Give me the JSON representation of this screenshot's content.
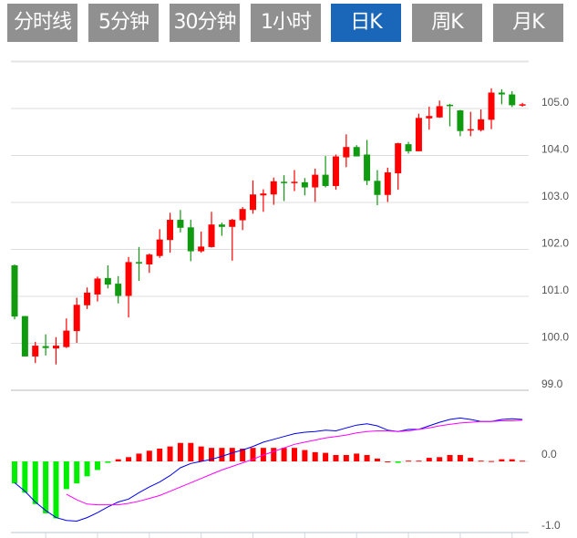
{
  "tabs": [
    {
      "label": "分时线",
      "active": false
    },
    {
      "label": "5分钟",
      "active": false
    },
    {
      "label": "30分钟",
      "active": false
    },
    {
      "label": "1小时",
      "active": false
    },
    {
      "label": "日K",
      "active": true
    },
    {
      "label": "周K",
      "active": false
    },
    {
      "label": "月K",
      "active": false
    }
  ],
  "colors": {
    "up": "#ff0000",
    "down": "#109a10",
    "hist_up": "#ff0000",
    "hist_down": "#00ee00",
    "dif": "#0000ee",
    "dea": "#ff00ff",
    "active_tab": "#1a66b8",
    "tab": "#909090"
  },
  "chart_data": [
    {
      "type": "candlestick",
      "ylim": [
        99.0,
        106.0
      ],
      "y_ticks": [
        "105.0",
        "104.0",
        "103.0",
        "102.0",
        "101.0",
        "100.0",
        "99.0"
      ],
      "y_tick_values": [
        105,
        104,
        103,
        102,
        101,
        100,
        99
      ],
      "grid": true,
      "ohlc": [
        [
          101.66,
          101.68,
          100.51,
          100.57
        ],
        [
          100.58,
          100.58,
          99.72,
          99.72
        ],
        [
          99.72,
          100.03,
          99.58,
          99.95
        ],
        [
          99.94,
          100.19,
          99.74,
          99.9
        ],
        [
          99.89,
          100.13,
          99.55,
          99.95
        ],
        [
          99.92,
          100.53,
          99.9,
          100.27
        ],
        [
          100.26,
          100.97,
          100.01,
          100.82
        ],
        [
          100.81,
          101.19,
          100.73,
          101.08
        ],
        [
          101.04,
          101.42,
          100.89,
          101.38
        ],
        [
          101.39,
          101.66,
          101.17,
          101.25
        ],
        [
          101.27,
          101.43,
          100.85,
          101.01
        ],
        [
          101.01,
          101.84,
          100.55,
          101.73
        ],
        [
          101.73,
          102.05,
          101.33,
          101.7
        ],
        [
          101.68,
          101.91,
          101.5,
          101.89
        ],
        [
          101.86,
          102.43,
          101.82,
          102.21
        ],
        [
          102.2,
          102.78,
          101.93,
          102.63
        ],
        [
          102.63,
          102.84,
          102.36,
          102.46
        ],
        [
          102.47,
          102.63,
          101.75,
          101.96
        ],
        [
          101.96,
          102.38,
          101.93,
          102.06
        ],
        [
          102.05,
          102.8,
          102.04,
          102.53
        ],
        [
          102.53,
          102.57,
          102.29,
          102.48
        ],
        [
          102.48,
          102.65,
          101.76,
          102.63
        ],
        [
          102.62,
          102.9,
          102.41,
          102.86
        ],
        [
          102.84,
          103.47,
          102.76,
          103.17
        ],
        [
          103.15,
          103.28,
          102.8,
          103.19
        ],
        [
          103.17,
          103.53,
          102.95,
          103.45
        ],
        [
          103.44,
          103.58,
          103.03,
          103.42
        ],
        [
          103.43,
          103.69,
          103.24,
          103.44
        ],
        [
          103.43,
          103.52,
          103.15,
          103.32
        ],
        [
          103.32,
          103.72,
          103.01,
          103.59
        ],
        [
          103.59,
          103.99,
          103.32,
          103.35
        ],
        [
          103.35,
          104.02,
          103.27,
          103.98
        ],
        [
          103.96,
          104.45,
          103.75,
          104.18
        ],
        [
          104.18,
          104.22,
          103.98,
          103.98
        ],
        [
          104.02,
          104.33,
          103.37,
          103.46
        ],
        [
          103.46,
          103.69,
          102.94,
          103.16
        ],
        [
          103.16,
          103.74,
          103.01,
          103.64
        ],
        [
          103.62,
          104.27,
          103.27,
          104.26
        ],
        [
          104.24,
          104.29,
          104.04,
          104.09
        ],
        [
          104.09,
          104.89,
          104.09,
          104.8
        ],
        [
          104.79,
          105.04,
          104.55,
          104.84
        ],
        [
          104.81,
          105.17,
          104.8,
          105.05
        ],
        [
          105.08,
          105.1,
          104.62,
          105.06
        ],
        [
          104.96,
          104.97,
          104.41,
          104.52
        ],
        [
          104.54,
          104.93,
          104.41,
          104.56
        ],
        [
          104.54,
          104.98,
          104.51,
          104.77
        ],
        [
          104.76,
          105.43,
          104.56,
          105.34
        ],
        [
          105.34,
          105.41,
          105.09,
          105.3
        ],
        [
          105.3,
          105.37,
          105.03,
          105.07
        ],
        [
          105.07,
          105.12,
          105.04,
          105.09
        ]
      ]
    },
    {
      "type": "macd",
      "ylim": [
        -1.0,
        0.9
      ],
      "y_ticks": [
        "0.0",
        "-1.0"
      ],
      "y_tick_values": [
        0,
        -1
      ],
      "histogram": [
        -0.31,
        -0.44,
        -0.6,
        -0.73,
        -0.8,
        -0.39,
        -0.31,
        -0.21,
        -0.12,
        -0.02,
        0.03,
        0.06,
        0.11,
        0.15,
        0.18,
        0.21,
        0.26,
        0.26,
        0.21,
        0.19,
        0.19,
        0.19,
        0.18,
        0.19,
        0.19,
        0.19,
        0.19,
        0.19,
        0.16,
        0.13,
        0.12,
        0.09,
        0.09,
        0.11,
        0.09,
        0.04,
        0.0,
        -0.02,
        0.01,
        0.01,
        0.05,
        0.06,
        0.09,
        0.09,
        0.05,
        0.01,
        0.005,
        0.03,
        0.03,
        0.01
      ],
      "dif": [
        -0.3,
        -0.42,
        -0.57,
        -0.69,
        -0.79,
        -0.83,
        -0.84,
        -0.79,
        -0.72,
        -0.64,
        -0.57,
        -0.53,
        -0.44,
        -0.36,
        -0.29,
        -0.2,
        -0.09,
        -0.03,
        0.0,
        0.03,
        0.07,
        0.12,
        0.16,
        0.21,
        0.27,
        0.31,
        0.35,
        0.39,
        0.41,
        0.42,
        0.44,
        0.43,
        0.47,
        0.51,
        0.53,
        0.5,
        0.44,
        0.42,
        0.45,
        0.45,
        0.5,
        0.55,
        0.59,
        0.61,
        0.59,
        0.56,
        0.56,
        0.59,
        0.6,
        0.59
      ],
      "dea": [
        null,
        null,
        null,
        null,
        null,
        -0.46,
        -0.54,
        -0.6,
        -0.61,
        -0.61,
        -0.61,
        -0.59,
        -0.56,
        -0.52,
        -0.48,
        -0.42,
        -0.36,
        -0.3,
        -0.24,
        -0.18,
        -0.12,
        -0.07,
        -0.02,
        0.03,
        0.09,
        0.14,
        0.19,
        0.24,
        0.27,
        0.3,
        0.33,
        0.35,
        0.37,
        0.4,
        0.42,
        0.43,
        0.43,
        0.42,
        0.43,
        0.45,
        0.47,
        0.5,
        0.52,
        0.54,
        0.55,
        0.56,
        0.56,
        0.57,
        0.57,
        0.58
      ]
    }
  ]
}
